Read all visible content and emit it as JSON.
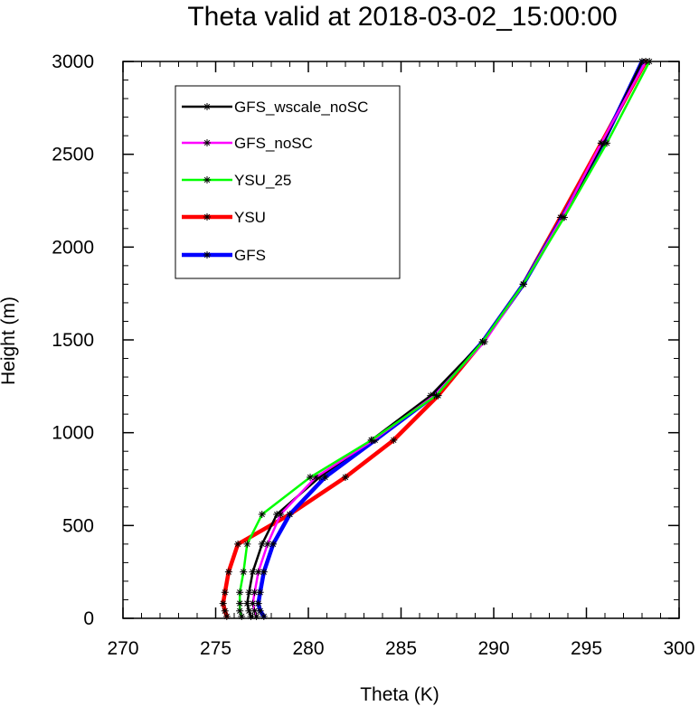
{
  "chart_data": {
    "type": "line",
    "title": "Theta valid at 2018-03-02_15:00:00",
    "xlabel": "Theta (K)",
    "ylabel": "Height (m)",
    "xlim": [
      270,
      300
    ],
    "ylim": [
      0,
      3000
    ],
    "x_ticks": [
      "270",
      "275",
      "280",
      "285",
      "290",
      "295",
      "300"
    ],
    "y_ticks": [
      "0",
      "500",
      "1000",
      "1500",
      "2000",
      "2500",
      "3000"
    ],
    "legend_placement": "top-left",
    "grid": false,
    "heights": [
      10,
      40,
      80,
      140,
      250,
      400,
      560,
      760,
      960,
      1200,
      1490,
      1800,
      2160,
      2560,
      3000
    ],
    "series": [
      {
        "name": "GFS_wscale_noSC",
        "color": "#000000",
        "linewidth": 2.5,
        "marker": "asterisk",
        "values": [
          276.9,
          276.8,
          276.7,
          276.8,
          277.0,
          277.5,
          278.3,
          280.6,
          283.4,
          286.6,
          289.4,
          291.6,
          293.7,
          295.9,
          298.0
        ]
      },
      {
        "name": "GFS_noSC",
        "color": "#ff00ff",
        "linewidth": 2.5,
        "marker": "asterisk",
        "values": [
          277.2,
          277.1,
          277.0,
          277.1,
          277.3,
          277.8,
          278.5,
          280.4,
          283.5,
          286.8,
          289.5,
          291.6,
          293.7,
          295.8,
          298.2
        ]
      },
      {
        "name": "YSU_25",
        "color": "#00ff00",
        "linewidth": 2.5,
        "marker": "asterisk",
        "values": [
          276.4,
          276.3,
          276.3,
          276.3,
          276.5,
          276.7,
          277.5,
          280.1,
          283.4,
          286.9,
          289.4,
          291.6,
          293.8,
          296.1,
          298.4
        ]
      },
      {
        "name": "YSU",
        "color": "#ff0000",
        "linewidth": 4.5,
        "marker": "asterisk",
        "values": [
          275.6,
          275.5,
          275.4,
          275.5,
          275.7,
          276.2,
          279.0,
          282.0,
          284.6,
          287.0,
          289.4,
          291.6,
          293.6,
          295.8,
          298.2
        ]
      },
      {
        "name": "GFS",
        "color": "#0000ff",
        "linewidth": 4.5,
        "marker": "asterisk",
        "values": [
          277.6,
          277.4,
          277.3,
          277.4,
          277.6,
          278.1,
          279.0,
          280.9,
          283.6,
          286.8,
          289.4,
          291.6,
          293.7,
          295.9,
          298.0
        ]
      }
    ]
  }
}
